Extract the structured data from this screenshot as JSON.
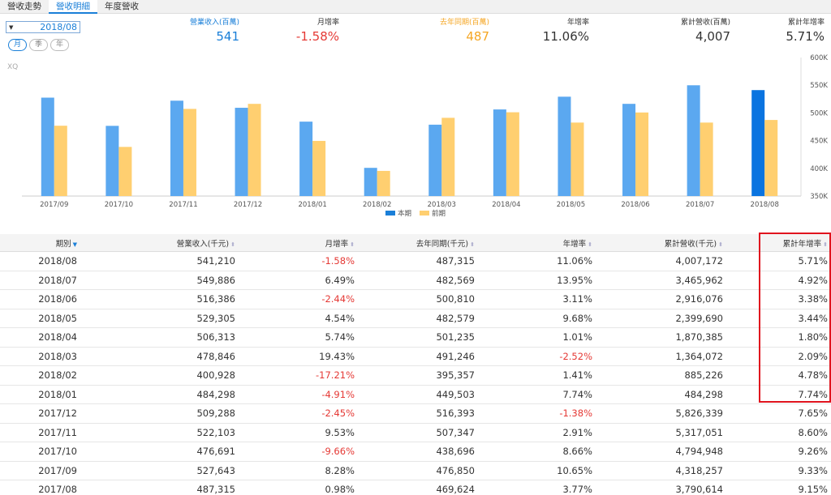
{
  "tabs": [
    "營收走勢",
    "營收明細",
    "年度營收"
  ],
  "date_select": "2018/08",
  "period_buttons": [
    "月",
    "季",
    "年"
  ],
  "watermark": "XQ",
  "metrics": [
    {
      "label": "營業收入(百萬)",
      "value": "541",
      "color": "#1a7fd8",
      "label_color": "#1a7fd8"
    },
    {
      "label": "月增率",
      "value": "-1.58%",
      "color": "#e53935",
      "label_color": "#333"
    },
    {
      "label": "去年同期(百萬)",
      "value": "487",
      "color": "#f5a623",
      "label_color": "#f5a623"
    },
    {
      "label": "年增率",
      "value": "11.06%",
      "color": "#333",
      "label_color": "#333"
    },
    {
      "label": "累計營收(百萬)",
      "value": "4,007",
      "color": "#333",
      "label_color": "#333"
    },
    {
      "label": "累計年增率",
      "value": "5.71%",
      "color": "#333",
      "label_color": "#333"
    }
  ],
  "chart_data": {
    "type": "bar",
    "categories": [
      "2017/09",
      "2017/10",
      "2017/11",
      "2017/12",
      "2018/01",
      "2018/02",
      "2018/03",
      "2018/04",
      "2018/05",
      "2018/06",
      "2018/07",
      "2018/08"
    ],
    "series": [
      {
        "name": "本期",
        "color": "#5ba8f0",
        "values": [
          527.6,
          476.7,
          522.1,
          509.3,
          484.3,
          400.9,
          478.8,
          506.3,
          529.3,
          516.4,
          549.9,
          541.2
        ]
      },
      {
        "name": "前期",
        "color": "#ffcf70",
        "values": [
          476.9,
          438.7,
          507.3,
          516.4,
          449.5,
          395.4,
          491.2,
          501.2,
          482.6,
          500.8,
          482.6,
          487.3
        ]
      }
    ],
    "highlight_color": "#0a74e0",
    "highlight_index": 11,
    "y_ticks": [
      "600K",
      "550K",
      "500K",
      "450K",
      "400K",
      "350K"
    ],
    "ylim": [
      350,
      600
    ]
  },
  "table": {
    "headers": [
      "期別",
      "營業收入(千元)",
      "月增率",
      "去年同期(千元)",
      "年增率",
      "累計營收(千元)",
      "累計年增率"
    ],
    "rows": [
      [
        "2018/08",
        "541,210",
        "-1.58%",
        "487,315",
        "11.06%",
        "4,007,172",
        "5.71%"
      ],
      [
        "2018/07",
        "549,886",
        "6.49%",
        "482,569",
        "13.95%",
        "3,465,962",
        "4.92%"
      ],
      [
        "2018/06",
        "516,386",
        "-2.44%",
        "500,810",
        "3.11%",
        "2,916,076",
        "3.38%"
      ],
      [
        "2018/05",
        "529,305",
        "4.54%",
        "482,579",
        "9.68%",
        "2,399,690",
        "3.44%"
      ],
      [
        "2018/04",
        "506,313",
        "5.74%",
        "501,235",
        "1.01%",
        "1,870,385",
        "1.80%"
      ],
      [
        "2018/03",
        "478,846",
        "19.43%",
        "491,246",
        "-2.52%",
        "1,364,072",
        "2.09%"
      ],
      [
        "2018/02",
        "400,928",
        "-17.21%",
        "395,357",
        "1.41%",
        "885,226",
        "4.78%"
      ],
      [
        "2018/01",
        "484,298",
        "-4.91%",
        "449,503",
        "7.74%",
        "484,298",
        "7.74%"
      ],
      [
        "2017/12",
        "509,288",
        "-2.45%",
        "516,393",
        "-1.38%",
        "5,826,339",
        "7.65%"
      ],
      [
        "2017/11",
        "522,103",
        "9.53%",
        "507,347",
        "2.91%",
        "5,317,051",
        "8.60%"
      ],
      [
        "2017/10",
        "476,691",
        "-9.66%",
        "438,696",
        "8.66%",
        "4,794,948",
        "9.26%"
      ],
      [
        "2017/09",
        "527,643",
        "8.28%",
        "476,850",
        "10.65%",
        "4,318,257",
        "9.33%"
      ],
      [
        "2017/08",
        "487,315",
        "0.98%",
        "469,624",
        "3.77%",
        "3,790,614",
        "9.15%"
      ]
    ]
  }
}
